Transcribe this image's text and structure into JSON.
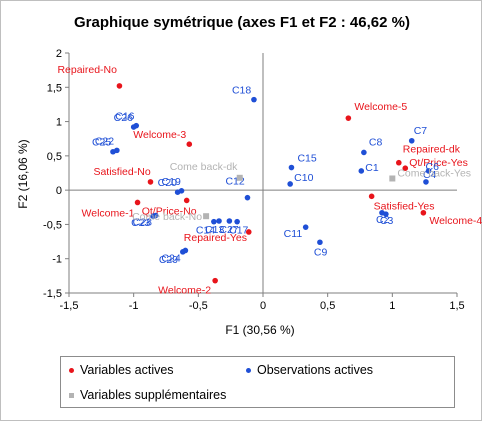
{
  "chart_data": {
    "type": "scatter",
    "title": "Graphique symétrique (axes F1 et F2 : 46,62 %)",
    "xlabel": "F1 (30,56 %)",
    "ylabel": "F2 (16,06 %)",
    "xlim": [
      -1.5,
      1.5
    ],
    "ylim": [
      -1.5,
      2
    ],
    "xticks": [
      "-1,5",
      "-1",
      "-0,5",
      "0",
      "0,5",
      "1",
      "1,5"
    ],
    "yticks": [
      "-1,5",
      "-1",
      "-0,5",
      "0",
      "0,5",
      "1",
      "1,5",
      "2"
    ],
    "grid": false,
    "legend_position": "bottom",
    "series": [
      {
        "name": "Variables actives",
        "color": "#e8141b",
        "marker": "circle",
        "points": [
          {
            "label": "Repaired-No",
            "x": -1.11,
            "y": 1.52
          },
          {
            "label": "Welcome-3",
            "x": -0.57,
            "y": 0.67
          },
          {
            "label": "Satisfied-No",
            "x": -0.87,
            "y": 0.12
          },
          {
            "label": "Welcome-1",
            "x": -0.97,
            "y": -0.18
          },
          {
            "label": "Qt/Price-No",
            "x": -0.59,
            "y": -0.15
          },
          {
            "label": "Repaired-Yes",
            "x": -0.11,
            "y": -0.61
          },
          {
            "label": "Welcome-2",
            "x": -0.37,
            "y": -1.32
          },
          {
            "label": "Welcome-5",
            "x": 0.66,
            "y": 1.05
          },
          {
            "label": "Repaired-dk",
            "x": 1.05,
            "y": 0.4
          },
          {
            "label": "Qt/Price-Yes",
            "x": 1.1,
            "y": 0.32
          },
          {
            "label": "Satisfied-Yes",
            "x": 0.84,
            "y": -0.09
          },
          {
            "label": "Welcome-4",
            "x": 1.24,
            "y": -0.33
          }
        ]
      },
      {
        "name": "Observations actives",
        "color": "#1f4fd6",
        "marker": "circle",
        "points": [
          {
            "label": "C18",
            "x": -0.07,
            "y": 1.32
          },
          {
            "label": "C16",
            "x": -0.98,
            "y": 0.94
          },
          {
            "label": "C26",
            "x": -1.0,
            "y": 0.92
          },
          {
            "label": "C22",
            "x": -1.13,
            "y": 0.58
          },
          {
            "label": "C25",
            "x": -1.16,
            "y": 0.56
          },
          {
            "label": "C19",
            "x": -0.63,
            "y": -0.01
          },
          {
            "label": "C20",
            "x": -0.66,
            "y": -0.03
          },
          {
            "label": "C12",
            "x": -0.12,
            "y": -0.11
          },
          {
            "label": "C28",
            "x": -0.83,
            "y": -0.37
          },
          {
            "label": "C23",
            "x": -0.85,
            "y": -0.38
          },
          {
            "label": "C14",
            "x": -0.38,
            "y": -0.46
          },
          {
            "label": "C13",
            "x": -0.34,
            "y": -0.45
          },
          {
            "label": "C27",
            "x": -0.26,
            "y": -0.45
          },
          {
            "label": "C17",
            "x": -0.2,
            "y": -0.46
          },
          {
            "label": "C24",
            "x": -0.6,
            "y": -0.88
          },
          {
            "label": "C29",
            "x": -0.62,
            "y": -0.9
          },
          {
            "label": "C15",
            "x": 0.22,
            "y": 0.33
          },
          {
            "label": "C10",
            "x": 0.21,
            "y": 0.09
          },
          {
            "label": "C8",
            "x": 0.78,
            "y": 0.55
          },
          {
            "label": "C1",
            "x": 0.76,
            "y": 0.28
          },
          {
            "label": "C7",
            "x": 1.15,
            "y": 0.72
          },
          {
            "label": "C6",
            "x": 1.28,
            "y": 0.28
          },
          {
            "label": "C4",
            "x": 1.26,
            "y": 0.12
          },
          {
            "label": "C2",
            "x": 0.92,
            "y": -0.33
          },
          {
            "label": "C3",
            "x": 0.95,
            "y": -0.35
          },
          {
            "label": "C11",
            "x": 0.33,
            "y": -0.54
          },
          {
            "label": "C9",
            "x": 0.44,
            "y": -0.76
          }
        ]
      },
      {
        "name": "Variables supplémentaires",
        "color": "#b3b3b3",
        "marker": "square",
        "points": [
          {
            "label": "Come back-dk",
            "x": -0.18,
            "y": 0.18
          },
          {
            "label": "Come back-No",
            "x": -0.44,
            "y": -0.38
          },
          {
            "label": "Come back-Yes",
            "x": 1.0,
            "y": 0.17
          }
        ]
      }
    ]
  }
}
